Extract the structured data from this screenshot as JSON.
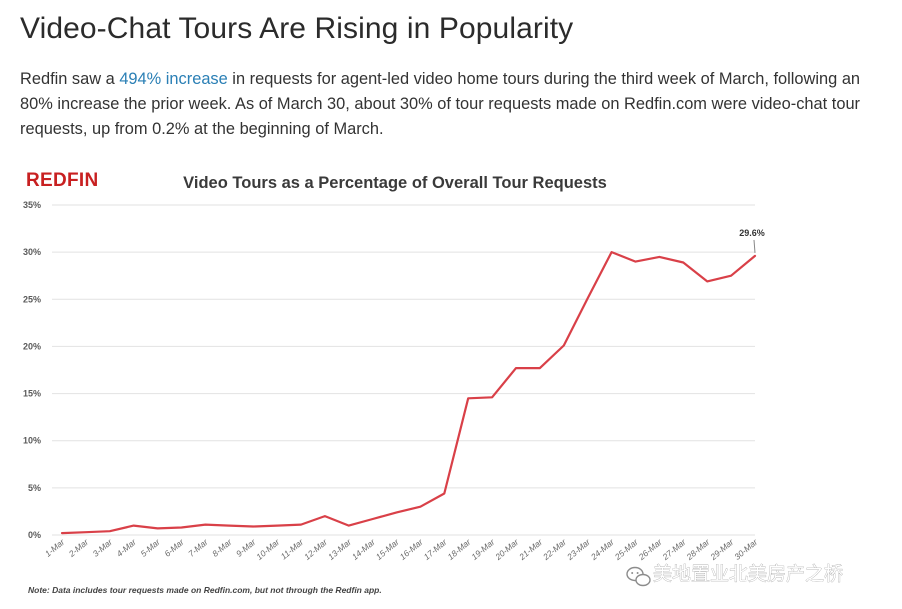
{
  "article": {
    "heading": "Video-Chat Tours Are Rising in Popularity",
    "intro_before": "Redfin saw a ",
    "intro_link": "494% increase",
    "intro_after": " in requests for agent-led video home tours during the third week of March, following an 80% increase the prior week. As of March 30, about 30% of tour requests made on Redfin.com were video-chat tour requests, up from 0.2% at the beginning of March.",
    "link_color": "#2a7fb5"
  },
  "chart_logo": "REDFIN",
  "chart_data": {
    "type": "line",
    "title": "Video Tours as a Percentage of Overall Tour Requests",
    "xlabel": "",
    "ylabel": "",
    "ylim": [
      0,
      35
    ],
    "yticks": [
      "0%",
      "5%",
      "10%",
      "15%",
      "20%",
      "25%",
      "30%",
      "35%"
    ],
    "categories": [
      "1-Mar",
      "2-Mar",
      "3-Mar",
      "4-Mar",
      "5-Mar",
      "6-Mar",
      "7-Mar",
      "8-Mar",
      "9-Mar",
      "10-Mar",
      "11-Mar",
      "12-Mar",
      "13-Mar",
      "14-Mar",
      "15-Mar",
      "16-Mar",
      "17-Mar",
      "18-Mar",
      "19-Mar",
      "20-Mar",
      "21-Mar",
      "22-Mar",
      "23-Mar",
      "24-Mar",
      "25-Mar",
      "26-Mar",
      "27-Mar",
      "28-Mar",
      "29-Mar",
      "30-Mar"
    ],
    "series": [
      {
        "color": "#d94048",
        "values": [
          0.2,
          0.3,
          0.4,
          1.0,
          0.7,
          0.8,
          1.1,
          1.0,
          0.9,
          1.0,
          1.1,
          2.0,
          1.0,
          1.7,
          2.4,
          3.0,
          4.4,
          14.5,
          14.6,
          17.7,
          17.7,
          20.1,
          25.1,
          30.0,
          29.0,
          29.5,
          28.9,
          26.9,
          27.5,
          29.6
        ]
      }
    ],
    "data_labels": [
      {
        "index": 29,
        "text": "29.6%"
      }
    ],
    "grid": true,
    "legend": "none",
    "note": "Note: Data includes tour requests made on Redfin.com, but not through the Redfin app."
  },
  "watermark": {
    "text": "美地置业北美房产之桥"
  }
}
